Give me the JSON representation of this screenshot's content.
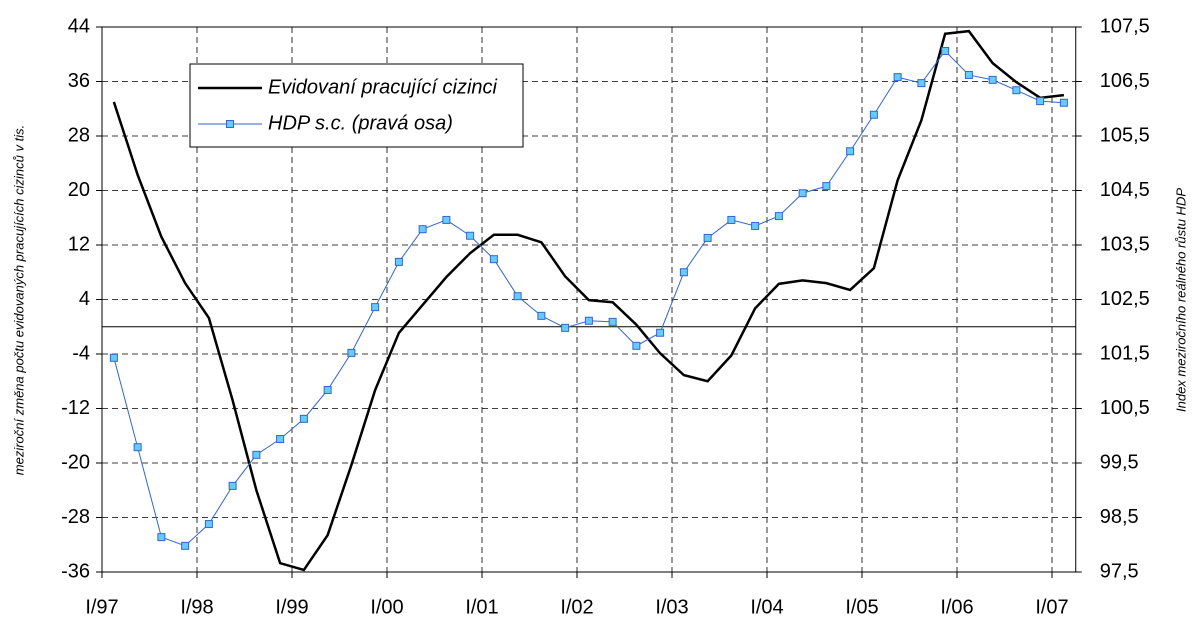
{
  "chart_data": {
    "type": "line",
    "categories": [
      "I/97",
      null,
      null,
      null,
      "I/98",
      null,
      null,
      null,
      "I/99",
      null,
      null,
      null,
      "I/00",
      null,
      null,
      null,
      "I/01",
      null,
      null,
      null,
      "I/02",
      null,
      null,
      null,
      "I/03",
      null,
      null,
      null,
      "I/04",
      null,
      null,
      null,
      "I/05",
      null,
      null,
      null,
      "I/06",
      null,
      null,
      null,
      "I/07"
    ],
    "ylabel": "meziroční změna počtu evidovaných pracujících cizinců v tis.",
    "y2label": "Index meziročního reálného růstu HDP",
    "ylim": [
      -36,
      44
    ],
    "yticks": [
      -36,
      -28,
      -20,
      -12,
      -4,
      4,
      12,
      20,
      28,
      36,
      44
    ],
    "y2lim": [
      97.5,
      107.5
    ],
    "y2ticks": [
      {
        "value": 97.5,
        "label": "97,5"
      },
      {
        "value": 98.5,
        "label": "98,5"
      },
      {
        "value": 99.5,
        "label": "99,5"
      },
      {
        "value": 100.5,
        "label": "100,5"
      },
      {
        "value": 101.5,
        "label": "101,5"
      },
      {
        "value": 102.5,
        "label": "102,5"
      },
      {
        "value": 103.5,
        "label": "103,5"
      },
      {
        "value": 104.5,
        "label": "104,5"
      },
      {
        "value": 105.5,
        "label": "105,5"
      },
      {
        "value": 106.5,
        "label": "106,5"
      },
      {
        "value": 107.5,
        "label": "107,5"
      }
    ],
    "grid": true,
    "legend": "top-left",
    "series": [
      {
        "name": "Evidovaní pracující cizinci",
        "color": "#000000",
        "values": [
          33.0,
          22.3,
          13.2,
          6.4,
          1.3,
          -10.8,
          -24,
          -34.7,
          -35.7,
          -30.6,
          -20.3,
          -9.3,
          -0.9,
          3.2,
          7.3,
          10.8,
          13.5,
          13.5,
          12.4,
          7.4,
          3.9,
          3.6,
          0.3,
          -3.9,
          -7.1,
          -8.0,
          -4.2,
          2.7,
          6.3,
          6.8,
          6.4,
          5.4,
          8.6,
          21.5,
          30.3,
          43.0,
          43.4,
          38.7,
          35.9,
          33.6,
          34.0
        ]
      },
      {
        "name": "HDP s.c. (pravá osa)",
        "color": "#3366cc",
        "axis": "y2",
        "values": [
          101.43,
          99.79,
          98.14,
          97.98,
          98.38,
          99.08,
          99.65,
          99.94,
          100.31,
          100.84,
          101.52,
          102.36,
          103.19,
          103.79,
          103.96,
          103.67,
          103.24,
          102.56,
          102.2,
          101.98,
          102.11,
          102.09,
          101.65,
          101.89,
          103.0,
          103.63,
          103.96,
          103.85,
          104.03,
          104.45,
          104.58,
          105.22,
          105.89,
          106.58,
          106.47,
          107.06,
          106.62,
          106.53,
          106.34,
          106.14,
          106.11
        ]
      }
    ]
  }
}
